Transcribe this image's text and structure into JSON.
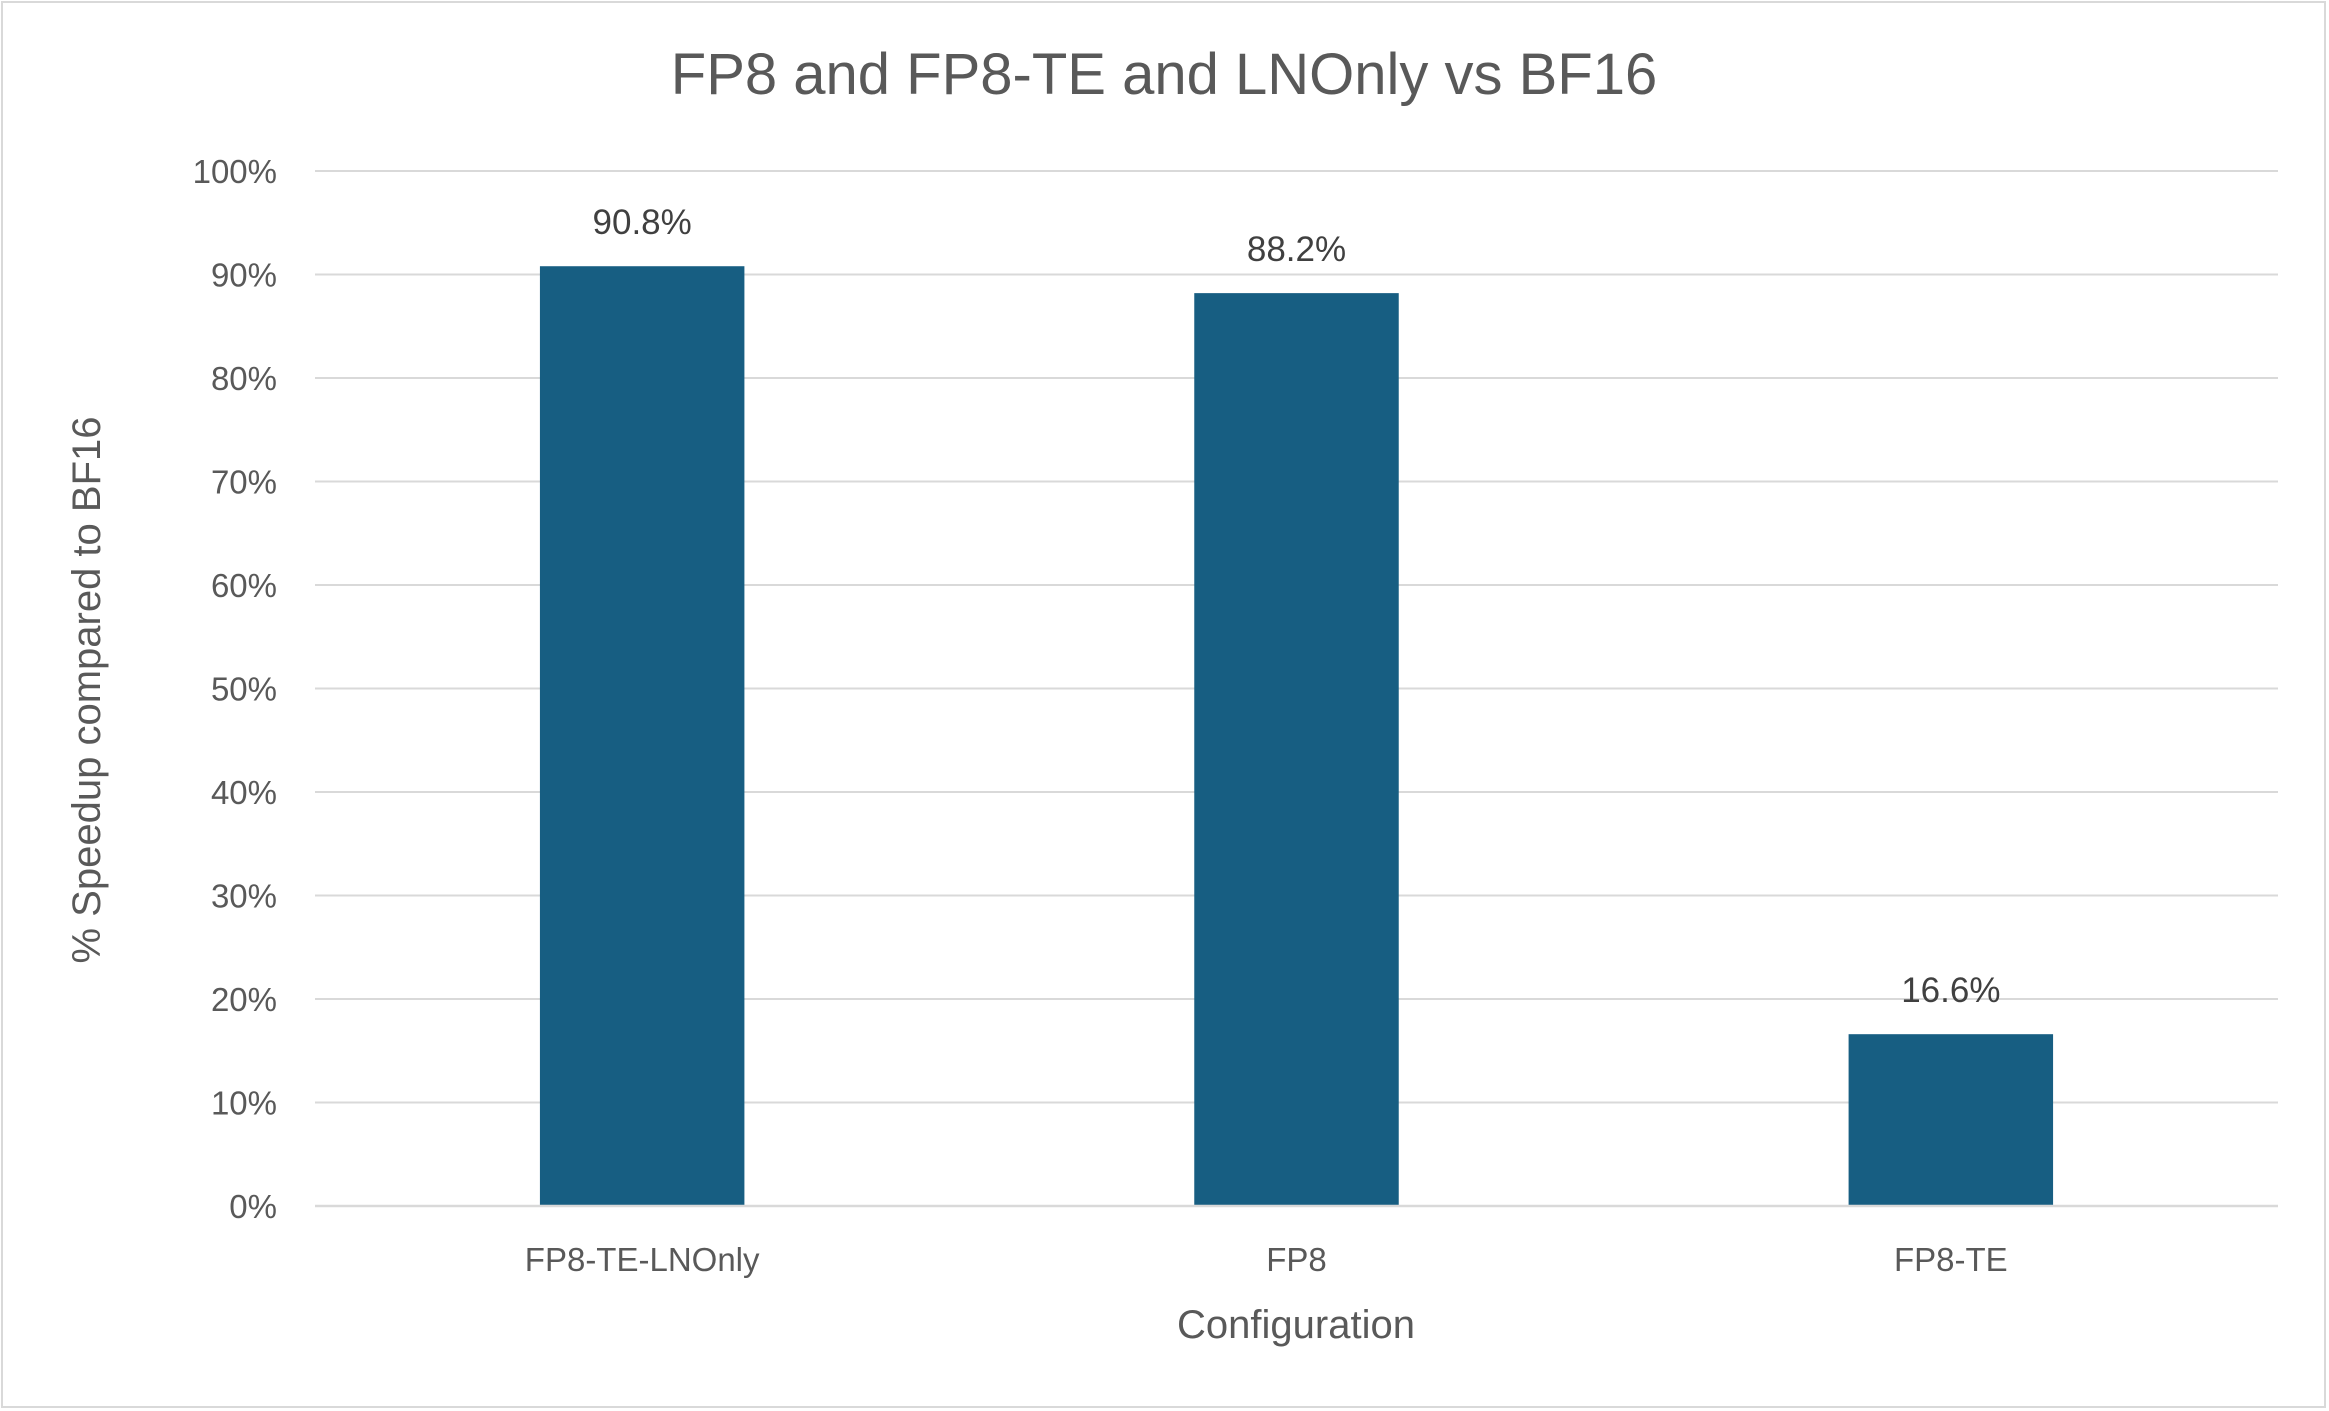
{
  "chart_data": {
    "type": "bar",
    "title": "FP8 and FP8-TE and LNOnly vs BF16",
    "xlabel": "Configuration",
    "ylabel": "% Speedup compared to BF16",
    "categories": [
      "FP8-TE-LNOnly",
      "FP8",
      "FP8-TE"
    ],
    "values": [
      90.8,
      88.2,
      16.6
    ],
    "data_labels": [
      "90.8%",
      "88.2%",
      "16.6%"
    ],
    "ylim": [
      0,
      100
    ],
    "yticks": [
      0,
      10,
      20,
      30,
      40,
      50,
      60,
      70,
      80,
      90,
      100
    ],
    "ytick_labels": [
      "0%",
      "10%",
      "20%",
      "30%",
      "40%",
      "50%",
      "60%",
      "70%",
      "80%",
      "90%",
      "100%"
    ],
    "grid": true,
    "legend": "none",
    "bar_color": "#175e82"
  }
}
